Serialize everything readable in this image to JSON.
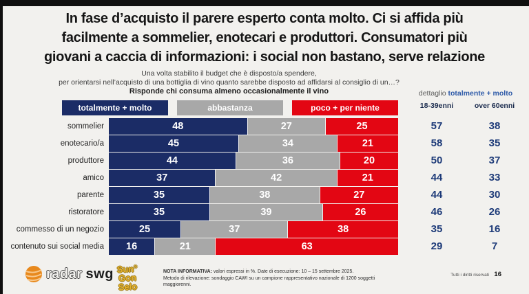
{
  "slide": {
    "title_lines": [
      "In fase d’acquisto il parere esperto conta molto. Ci si affida più",
      "facilmente a sommelier, enotecari e produttori. Consumatori più",
      "giovani a caccia di informazioni: i social non bastano, serve relazione"
    ],
    "subtitle_line1": "Una volta stabilito il budget che è disposto/a spendere,",
    "subtitle_line2": "per orientarsi nell’acquisto di una bottiglia di vino quanto sarebbe disposto ad affidarsi al consiglio di un…?",
    "subtitle_line3": "Risponde chi consuma almeno occasionalmente il vino"
  },
  "legend": {
    "items": [
      {
        "label": "totalmente + molto",
        "color": "#1b2c66"
      },
      {
        "label": "abbastanza",
        "color": "#a8a8a8"
      },
      {
        "label": "poco + per niente",
        "color": "#e30613"
      }
    ]
  },
  "detail_panel": {
    "header_prefix": "dettaglio",
    "header_highlight": "totalmente + molto",
    "columns": [
      "18-39enni",
      "over 60enni"
    ]
  },
  "chart_data": {
    "type": "bar",
    "orientation": "horizontal",
    "stacked": true,
    "unit": "%",
    "xlim": [
      0,
      100
    ],
    "categories": [
      "sommelier",
      "enotecario/a",
      "produttore",
      "amico",
      "parente",
      "ristoratore",
      "commesso di un negozio",
      "contenuto sui social media"
    ],
    "series": [
      {
        "name": "totalmente + molto",
        "color": "#1b2c66",
        "values": [
          48,
          45,
          44,
          37,
          35,
          35,
          25,
          16
        ]
      },
      {
        "name": "abbastanza",
        "color": "#a8a8a8",
        "values": [
          27,
          34,
          36,
          42,
          38,
          39,
          37,
          21
        ]
      },
      {
        "name": "poco + per niente",
        "color": "#e30613",
        "values": [
          25,
          21,
          20,
          21,
          27,
          26,
          38,
          63
        ]
      }
    ],
    "detail_series": [
      {
        "name": "18-39enni",
        "values": [
          57,
          58,
          50,
          44,
          44,
          46,
          35,
          29
        ]
      },
      {
        "name": "over 60enni",
        "values": [
          38,
          35,
          37,
          33,
          30,
          26,
          16,
          7
        ]
      }
    ]
  },
  "footer": {
    "radar_logo_outline": "radar",
    "radar_logo_solid": "swg",
    "badge_lines": [
      "Sun",
      "Gon",
      "Selo"
    ],
    "badge_reg": "®",
    "nota_label": "NOTA INFORMATIVA:",
    "nota_line1": " valori espressi in %. Date di esecuzione: 10 – 15 settembre 2025.",
    "nota_line2": "Metodo di rilevazione: sondaggio CAWI su un campione rappresentativo nazionale di 1200 soggetti maggiorenni.",
    "rights": "Tutti i diritti riservati",
    "page_number": "16"
  }
}
